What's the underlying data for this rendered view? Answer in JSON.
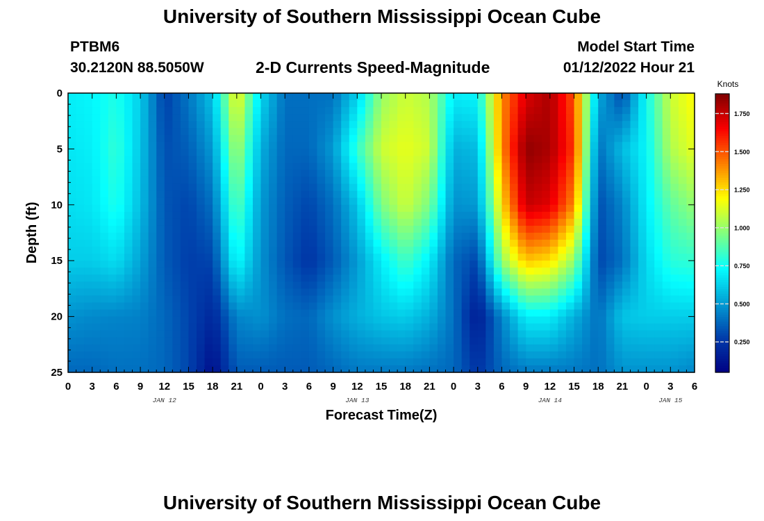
{
  "title": "University of Southern Mississippi Ocean Cube",
  "footer_title": "University of Southern Mississippi Ocean Cube",
  "station": {
    "id": "PTBM6",
    "coords": "30.2120N  88.5050W"
  },
  "subtitle": "2-D Currents Speed-Magnitude",
  "model": {
    "label": "Model Start Time",
    "time": "01/12/2022 Hour 21"
  },
  "chart_data": {
    "type": "heatmap",
    "title": "2-D Currents Speed-Magnitude",
    "xlabel": "Forecast Time(Z)",
    "ylabel": "Depth (ft)",
    "x_tick_labels": [
      "0",
      "3",
      "6",
      "9",
      "12",
      "15",
      "18",
      "21",
      "0",
      "3",
      "6",
      "9",
      "12",
      "15",
      "18",
      "21",
      "0",
      "3",
      "6",
      "9",
      "12",
      "15",
      "18",
      "21",
      "0",
      "3",
      "6"
    ],
    "x_range_hours": [
      0,
      78
    ],
    "date_labels": [
      {
        "text": "JAN 12",
        "hour": 12
      },
      {
        "text": "JAN 13",
        "hour": 36
      },
      {
        "text": "JAN 14",
        "hour": 60
      },
      {
        "text": "JAN 15",
        "hour": 75
      }
    ],
    "y_ticks": [
      0,
      5,
      10,
      15,
      20,
      25
    ],
    "ylim": [
      0,
      25
    ],
    "y_inverted": true,
    "colorbar": {
      "unit": "Knots",
      "ticks": [
        "0.250",
        "0.500",
        "0.750",
        "1.000",
        "1.250",
        "1.500",
        "1.750"
      ],
      "tick_values": [
        0.25,
        0.5,
        0.75,
        1.0,
        1.25,
        1.5,
        1.75
      ],
      "range": [
        0.05,
        1.88
      ],
      "colormap": "jet"
    },
    "grid_hours": [
      0,
      3,
      6,
      9,
      12,
      15,
      18,
      21,
      24,
      27,
      30,
      33,
      36,
      39,
      42,
      45,
      48,
      51,
      54,
      57,
      60,
      63,
      66,
      69,
      72,
      75,
      78
    ],
    "grid_depths": [
      0,
      5,
      10,
      15,
      20,
      25
    ],
    "speed_knots": [
      [
        0.7,
        0.72,
        0.78,
        0.62,
        0.28,
        0.42,
        0.6,
        1.2,
        0.65,
        0.4,
        0.4,
        0.4,
        0.62,
        1.0,
        1.1,
        1.05,
        0.7,
        0.72,
        1.4,
        1.7,
        1.8,
        1.5,
        0.55,
        0.3,
        0.75,
        1.1,
        1.2
      ],
      [
        0.68,
        0.7,
        0.82,
        0.6,
        0.32,
        0.36,
        0.5,
        1.05,
        0.55,
        0.38,
        0.38,
        0.5,
        0.82,
        1.1,
        1.15,
        1.1,
        0.55,
        0.58,
        1.4,
        1.85,
        1.8,
        1.55,
        0.4,
        0.58,
        0.72,
        1.05,
        1.15
      ],
      [
        0.66,
        0.68,
        0.78,
        0.58,
        0.34,
        0.3,
        0.4,
        0.9,
        0.5,
        0.36,
        0.3,
        0.4,
        0.6,
        0.95,
        1.1,
        0.95,
        0.48,
        0.5,
        1.25,
        1.75,
        1.7,
        1.4,
        0.32,
        0.45,
        0.7,
        0.9,
        1.0
      ],
      [
        0.62,
        0.62,
        0.66,
        0.52,
        0.35,
        0.28,
        0.3,
        0.75,
        0.48,
        0.34,
        0.25,
        0.35,
        0.5,
        0.7,
        0.85,
        0.7,
        0.38,
        0.3,
        1.0,
        1.3,
        1.25,
        1.0,
        0.3,
        0.4,
        0.65,
        0.8,
        0.82
      ],
      [
        0.48,
        0.46,
        0.45,
        0.44,
        0.38,
        0.3,
        0.2,
        0.45,
        0.48,
        0.4,
        0.38,
        0.48,
        0.55,
        0.6,
        0.62,
        0.55,
        0.4,
        0.15,
        0.45,
        0.7,
        0.7,
        0.55,
        0.4,
        0.6,
        0.62,
        0.62,
        0.62
      ],
      [
        0.38,
        0.38,
        0.4,
        0.4,
        0.38,
        0.3,
        0.1,
        0.35,
        0.35,
        0.35,
        0.35,
        0.38,
        0.42,
        0.42,
        0.42,
        0.4,
        0.38,
        0.25,
        0.38,
        0.42,
        0.42,
        0.42,
        0.4,
        0.48,
        0.48,
        0.48,
        0.45
      ]
    ]
  }
}
